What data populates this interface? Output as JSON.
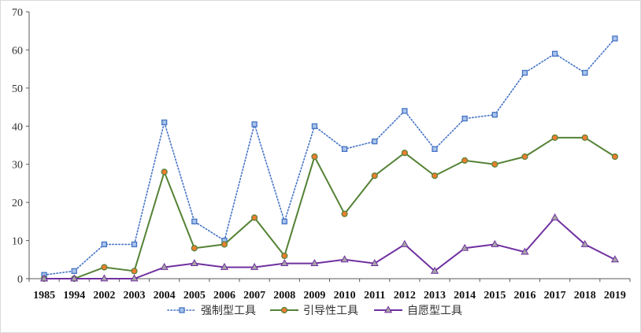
{
  "chart_data": {
    "type": "line",
    "title": "",
    "xlabel": "",
    "ylabel": "",
    "ylim": [
      0,
      70
    ],
    "yticks": [
      0,
      10,
      20,
      30,
      40,
      50,
      60,
      70
    ],
    "grid": false,
    "legend_position": "bottom",
    "categories": [
      "1985",
      "1994",
      "2002",
      "2003",
      "2004",
      "2005",
      "2006",
      "2007",
      "2008",
      "2009",
      "2010",
      "2011",
      "2012",
      "2013",
      "2014",
      "2015",
      "2016",
      "2017",
      "2018",
      "2019"
    ],
    "series": [
      {
        "name": "强制型工具",
        "color": "#4472c4",
        "line_style": "dotted",
        "marker": "square",
        "values": [
          1,
          2,
          9,
          9,
          41,
          15,
          10,
          40.5,
          15,
          40,
          34,
          36,
          44,
          34,
          42,
          43,
          54,
          59,
          54,
          63
        ]
      },
      {
        "name": "引导性工具",
        "color": "#548235",
        "line_style": "solid",
        "marker": "circle",
        "marker_fill": "#ed7d31",
        "values": [
          0,
          0,
          3,
          2,
          28,
          8,
          9,
          16,
          6,
          32,
          17,
          27,
          33,
          27,
          31,
          30,
          32,
          37,
          37,
          32
        ]
      },
      {
        "name": "自愿型工具",
        "color": "#7030a0",
        "line_style": "solid",
        "marker": "triangle",
        "marker_fill": "#a5a5a5",
        "values": [
          0,
          0,
          0,
          0,
          3,
          4,
          3,
          3,
          4,
          4,
          5,
          4,
          9,
          2,
          8,
          9,
          7,
          16,
          9,
          5
        ]
      }
    ]
  }
}
